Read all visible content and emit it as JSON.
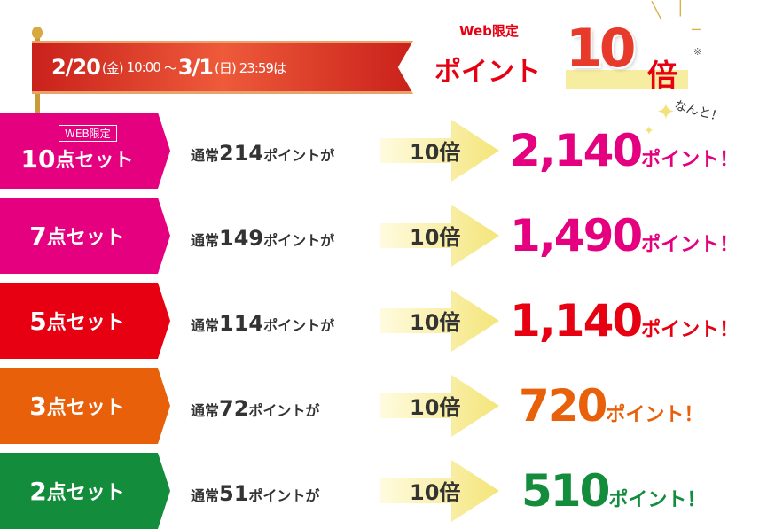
{
  "banner": {
    "start_date": "2/20",
    "start_day": "(金)",
    "start_time": "10:00",
    "tilde": "～",
    "end_date": "3/1",
    "end_day": "(日)",
    "end_time": "23:59は"
  },
  "headline": {
    "web_only": "Web限定",
    "points": "ポイント",
    "multiplier": "10",
    "bai": "倍",
    "note": "※"
  },
  "nanto": "なんと！",
  "web_badge": "WEB限定",
  "rows": [
    {
      "count": "10",
      "unit": "点セット",
      "base_prefix": "通常",
      "base": "214",
      "base_suffix": "ポイントが",
      "arrow": "10倍",
      "result": "2,140",
      "result_unit": "ポイント！",
      "color": "#e4007f"
    },
    {
      "count": "7",
      "unit": "点セット",
      "base_prefix": "通常",
      "base": "149",
      "base_suffix": "ポイントが",
      "arrow": "10倍",
      "result": "1,490",
      "result_unit": "ポイント！",
      "color": "#e4007f"
    },
    {
      "count": "5",
      "unit": "点セット",
      "base_prefix": "通常",
      "base": "114",
      "base_suffix": "ポイントが",
      "arrow": "10倍",
      "result": "1,140",
      "result_unit": "ポイント！",
      "color": "#e60012"
    },
    {
      "count": "3",
      "unit": "点セット",
      "base_prefix": "通常",
      "base": "72",
      "base_suffix": "ポイントが",
      "arrow": "10倍",
      "result": "720",
      "result_unit": "ポイント！",
      "color": "#e8600a"
    },
    {
      "count": "2",
      "unit": "点セット",
      "base_prefix": "通常",
      "base": "51",
      "base_suffix": "ポイントが",
      "arrow": "10倍",
      "result": "510",
      "result_unit": "ポイント！",
      "color": "#138c3c"
    }
  ]
}
